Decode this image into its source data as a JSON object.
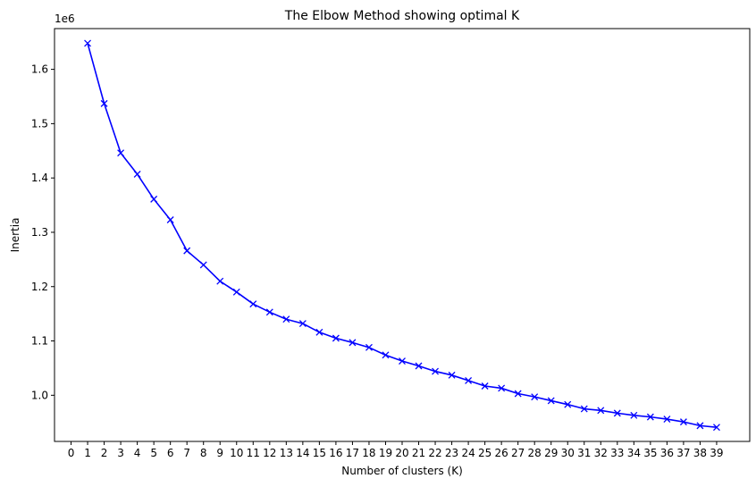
{
  "chart_data": {
    "type": "line",
    "title": "The Elbow Method showing optimal K",
    "xlabel": "Number of clusters (K)",
    "ylabel": "Inertia",
    "y_offset_label": "1e6",
    "xlim": [
      -1,
      41
    ],
    "ylim": [
      915000,
      1675000
    ],
    "x_ticks": [
      0,
      1,
      2,
      3,
      4,
      5,
      6,
      7,
      8,
      9,
      10,
      11,
      12,
      13,
      14,
      15,
      16,
      17,
      18,
      19,
      20,
      21,
      22,
      23,
      24,
      25,
      26,
      27,
      28,
      29,
      30,
      31,
      32,
      33,
      34,
      35,
      36,
      37,
      38,
      39
    ],
    "y_ticks": [
      1000000,
      1100000,
      1200000,
      1300000,
      1400000,
      1500000,
      1600000
    ],
    "y_tick_labels": [
      "1.0",
      "1.1",
      "1.2",
      "1.3",
      "1.4",
      "1.5",
      "1.6"
    ],
    "grid": false,
    "marker": "x",
    "line_color": "#0000ff",
    "series": [
      {
        "x": [
          1,
          2,
          3,
          4,
          5,
          6,
          7,
          8,
          9,
          10,
          11,
          12,
          13,
          14,
          15,
          16,
          17,
          18,
          19,
          20,
          21,
          22,
          23,
          24,
          25,
          26,
          27,
          28,
          29,
          30,
          31,
          32,
          33,
          34,
          35,
          36,
          37,
          38,
          39
        ],
        "values": [
          1648000,
          1537000,
          1446000,
          1407000,
          1361000,
          1323000,
          1266000,
          1240000,
          1210000,
          1190000,
          1168000,
          1153000,
          1140000,
          1132000,
          1116000,
          1105000,
          1097000,
          1088000,
          1074000,
          1063000,
          1054000,
          1044000,
          1037000,
          1027000,
          1017000,
          1013000,
          1003000,
          997000,
          990000,
          983000,
          975000,
          972000,
          967000,
          963000,
          960000,
          956000,
          951000,
          944000,
          941000
        ]
      }
    ]
  }
}
